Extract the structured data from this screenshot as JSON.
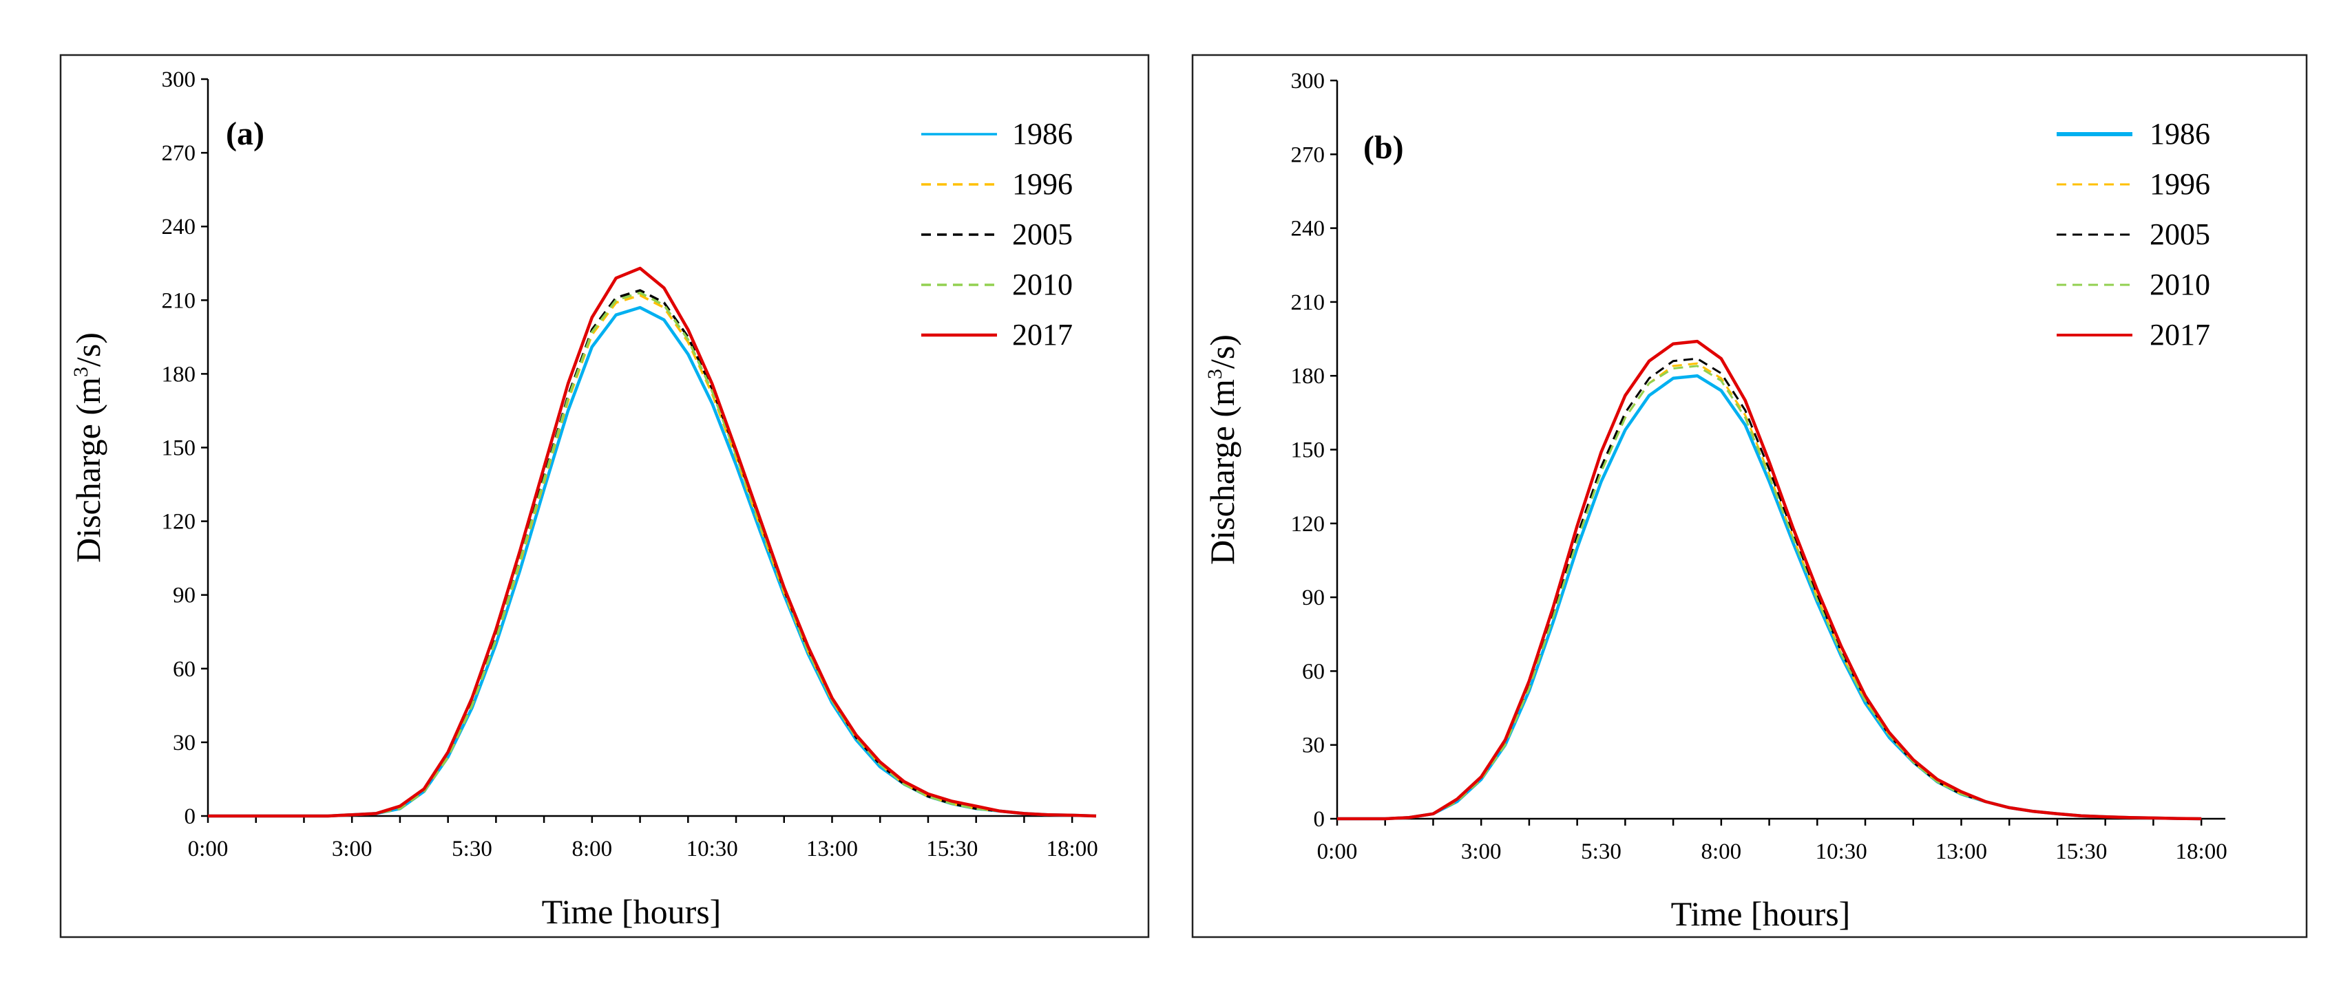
{
  "chart_data": [
    {
      "type": "line",
      "panel_label": "(a)",
      "xlabel": "Time [hours]",
      "ylabel": "Discharge (m³/s)",
      "ylabel_parts": {
        "pre": "Discharge (m",
        "sup": "3",
        "post": "/s)"
      },
      "ylim": [
        0,
        300
      ],
      "yticks": [
        "0",
        "30",
        "60",
        "90",
        "120",
        "150",
        "180",
        "210",
        "240",
        "270",
        "300"
      ],
      "xlim": [
        0,
        18.5
      ],
      "xticks": [
        "0:00",
        "3:00",
        "5:30",
        "8:00",
        "10:30",
        "13:00",
        "15:30",
        "18:00"
      ],
      "xtick_values": [
        0,
        3,
        5.5,
        8,
        10.5,
        13,
        15.5,
        18
      ],
      "legend_position": "top-right",
      "x": [
        0,
        0.5,
        1,
        1.5,
        2,
        2.5,
        3,
        3.5,
        4,
        4.5,
        5,
        5.5,
        6,
        6.5,
        7,
        7.5,
        8,
        8.5,
        9,
        9.5,
        10,
        10.5,
        11,
        11.5,
        12,
        12.5,
        13,
        13.5,
        14,
        14.5,
        15,
        15.5,
        16,
        16.5,
        17,
        17.5,
        18,
        18.5
      ],
      "series": [
        {
          "name": "1986",
          "color": "#00b0f0",
          "dash": "solid",
          "values": [
            0,
            0,
            0,
            0,
            0,
            0,
            0.5,
            1,
            3,
            10,
            24,
            44,
            70,
            100,
            133,
            165,
            191,
            204,
            207,
            202,
            188,
            168,
            143,
            116,
            90,
            66,
            46,
            31,
            20,
            13,
            8,
            5,
            3,
            2,
            1,
            0.5,
            0.3,
            0
          ]
        },
        {
          "name": "1996",
          "color": "#ffc000",
          "dash": "dashed",
          "values": [
            0,
            0,
            0,
            0,
            0,
            0,
            0.5,
            1,
            3,
            10,
            24,
            45,
            72,
            103,
            136,
            169,
            196,
            209,
            212,
            207,
            193,
            172,
            146,
            118,
            91,
            67,
            47,
            32,
            21,
            13,
            8,
            5,
            3,
            2,
            1,
            0.5,
            0.3,
            0
          ]
        },
        {
          "name": "2005",
          "color": "#000000",
          "dash": "dashed",
          "values": [
            0,
            0,
            0,
            0,
            0,
            0,
            0.5,
            1,
            3,
            10,
            25,
            46,
            73,
            105,
            138,
            171,
            198,
            211,
            214,
            209,
            195,
            174,
            148,
            120,
            92,
            68,
            48,
            32,
            21,
            13,
            8,
            5,
            3,
            2,
            1,
            0.5,
            0.3,
            0
          ]
        },
        {
          "name": "2010",
          "color": "#92d050",
          "dash": "dashed",
          "values": [
            0,
            0,
            0,
            0,
            0,
            0,
            0.5,
            1,
            3,
            10,
            24,
            45,
            72,
            104,
            137,
            170,
            197,
            210,
            213,
            208,
            194,
            173,
            147,
            119,
            92,
            67,
            47,
            32,
            21,
            13,
            8,
            5,
            3,
            2,
            1,
            0.5,
            0.3,
            0
          ]
        },
        {
          "name": "2017",
          "color": "#e00000",
          "dash": "solid",
          "values": [
            0,
            0,
            0,
            0,
            0,
            0,
            0.5,
            1,
            4,
            11,
            26,
            48,
            76,
            108,
            142,
            176,
            203,
            219,
            223,
            215,
            198,
            176,
            149,
            121,
            93,
            69,
            48,
            33,
            22,
            14,
            9,
            6,
            4,
            2,
            1,
            0.5,
            0.3,
            0
          ]
        }
      ]
    },
    {
      "type": "line",
      "panel_label": "(b)",
      "xlabel": "Time [hours]",
      "ylabel": "Discharge (m³/s)",
      "ylabel_parts": {
        "pre": "Discharge (m",
        "sup": "3",
        "post": "/s)"
      },
      "ylim": [
        0,
        300
      ],
      "yticks": [
        "0",
        "30",
        "60",
        "90",
        "120",
        "150",
        "180",
        "210",
        "240",
        "270",
        "300"
      ],
      "xlim": [
        0,
        18.5
      ],
      "xticks": [
        "0:00",
        "3:00",
        "5:30",
        "8:00",
        "10:30",
        "13:00",
        "15:30",
        "18:00"
      ],
      "xtick_values": [
        0,
        3,
        5.5,
        8,
        10.5,
        13,
        15.5,
        18
      ],
      "legend_position": "top-right",
      "x": [
        0,
        0.5,
        1,
        1.5,
        2,
        2.5,
        3,
        3.5,
        4,
        4.5,
        5,
        5.5,
        6,
        6.5,
        7,
        7.5,
        8,
        8.5,
        9,
        9.5,
        10,
        10.5,
        11,
        11.5,
        12,
        12.5,
        13,
        13.5,
        14,
        14.5,
        15,
        15.5,
        16,
        16.5,
        17,
        17.5,
        18
      ],
      "series": [
        {
          "name": "1986",
          "color": "#00b0f0",
          "dash": "solid",
          "values": [
            0,
            0,
            0,
            0.5,
            2,
            7,
            16,
            30,
            52,
            80,
            110,
            137,
            158,
            172,
            179,
            180,
            174,
            160,
            137,
            112,
            88,
            66,
            47,
            33,
            23,
            15,
            10,
            7,
            4.5,
            3,
            2,
            1.2,
            0.8,
            0.5,
            0.3,
            0.1,
            0
          ]
        },
        {
          "name": "1996",
          "color": "#ffc000",
          "dash": "dashed",
          "values": [
            0,
            0,
            0,
            0.5,
            2,
            7,
            16,
            31,
            53,
            82,
            113,
            141,
            163,
            177,
            184,
            185,
            179,
            164,
            140,
            114,
            90,
            67,
            48,
            34,
            23,
            15,
            10,
            7,
            4.5,
            3,
            2,
            1.2,
            0.8,
            0.5,
            0.3,
            0.1,
            0
          ]
        },
        {
          "name": "2005",
          "color": "#000000",
          "dash": "dashed",
          "values": [
            0,
            0,
            0,
            0.5,
            2,
            7,
            16,
            31,
            54,
            83,
            115,
            143,
            165,
            179,
            186,
            187,
            181,
            166,
            142,
            116,
            91,
            68,
            49,
            34,
            23,
            15,
            10,
            7,
            4.5,
            3,
            2,
            1.2,
            0.8,
            0.5,
            0.3,
            0.1,
            0
          ]
        },
        {
          "name": "2010",
          "color": "#92d050",
          "dash": "dashed",
          "values": [
            0,
            0,
            0,
            0.5,
            2,
            7,
            16,
            30,
            53,
            82,
            113,
            141,
            163,
            177,
            183,
            184,
            178,
            163,
            139,
            114,
            89,
            67,
            48,
            34,
            23,
            15,
            10,
            7,
            4.5,
            3,
            2,
            1.2,
            0.8,
            0.5,
            0.3,
            0.1,
            0
          ]
        },
        {
          "name": "2017",
          "color": "#e00000",
          "dash": "solid",
          "values": [
            0,
            0,
            0,
            0.5,
            2,
            8,
            17,
            32,
            56,
            86,
            119,
            149,
            172,
            186,
            193,
            194,
            187,
            170,
            145,
            118,
            93,
            70,
            50,
            35,
            24,
            16,
            11,
            7,
            4.5,
            3,
            2,
            1.2,
            0.8,
            0.5,
            0.3,
            0.1,
            0
          ]
        }
      ]
    }
  ]
}
